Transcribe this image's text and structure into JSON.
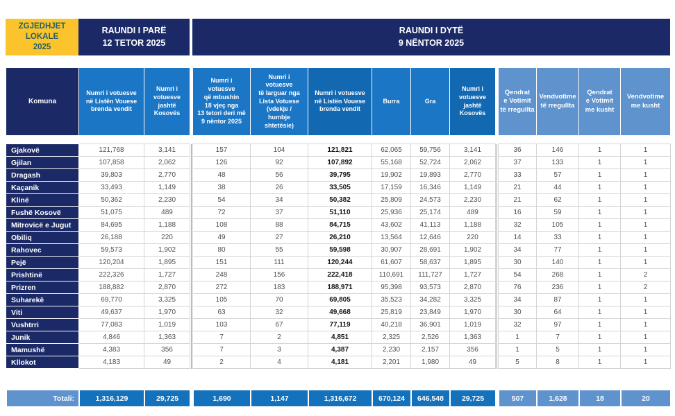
{
  "banner": {
    "logo": "ZGJEDHJET\nLOKALE\n2025",
    "round1": "RAUNDI I PARË\n12 TETOR 2025",
    "round2": "RAUNDI I DYTË\n9 NËNTOR 2025"
  },
  "table": {
    "columns": [
      {
        "key": "komuna",
        "label": "Komuna"
      },
      {
        "key": "r1_brenda",
        "label": "Numri i votuesve\nnë Listën Vouese\nbrenda vendit"
      },
      {
        "key": "r1_jashte",
        "label": "Numri i\nvotuesve\njashtë\nKosovës"
      },
      {
        "key": "r2_18vjec",
        "label": "Numri i\nvotuesve\nqë mbushin\n18 vjeç nga\n13 tetori deri më\n9 nëntor 2025"
      },
      {
        "key": "r2_larguar",
        "label": "Numri i\nvotuesve\ntë larguar nga\nLista Votuese\n(vdekje /\nhumbje\nshtetësie)"
      },
      {
        "key": "r2_brenda",
        "label": "Numri i votuesve\nnë Listën Vouese\nbrenda vendit"
      },
      {
        "key": "burra",
        "label": "Burra"
      },
      {
        "key": "gra",
        "label": "Gra"
      },
      {
        "key": "r2_jashte",
        "label": "Numri i\nvotuesve\njashtë\nKosovës"
      },
      {
        "key": "qv_rregullta",
        "label": "Qendrat\ne Votimit\ntë rregullta"
      },
      {
        "key": "vv_rregullta",
        "label": "Vendvotime\ntë rregullta"
      },
      {
        "key": "qv_kusht",
        "label": "Qendrat\ne Votimit\nme kusht"
      },
      {
        "key": "vv_kusht",
        "label": "Vendvotime\nme kusht"
      }
    ],
    "rows": [
      {
        "komuna": "Gjakovë",
        "values": [
          "121,768",
          "3,141",
          "157",
          "104",
          "121,821",
          "62,065",
          "59,756",
          "3,141",
          "36",
          "146",
          "1",
          "1"
        ]
      },
      {
        "komuna": "Gjilan",
        "values": [
          "107,858",
          "2,062",
          "126",
          "92",
          "107,892",
          "55,168",
          "52,724",
          "2,062",
          "37",
          "133",
          "1",
          "1"
        ]
      },
      {
        "komuna": "Dragash",
        "values": [
          "39,803",
          "2,770",
          "48",
          "56",
          "39,795",
          "19,902",
          "19,893",
          "2,770",
          "33",
          "57",
          "1",
          "1"
        ]
      },
      {
        "komuna": "Kaçanik",
        "values": [
          "33,493",
          "1,149",
          "38",
          "26",
          "33,505",
          "17,159",
          "16,346",
          "1,149",
          "21",
          "44",
          "1",
          "1"
        ]
      },
      {
        "komuna": "Klinë",
        "values": [
          "50,362",
          "2,230",
          "54",
          "34",
          "50,382",
          "25,809",
          "24,573",
          "2,230",
          "21",
          "62",
          "1",
          "1"
        ]
      },
      {
        "komuna": "Fushë Kosovë",
        "values": [
          "51,075",
          "489",
          "72",
          "37",
          "51,110",
          "25,936",
          "25,174",
          "489",
          "16",
          "59",
          "1",
          "1"
        ]
      },
      {
        "komuna": "Mitrovicë e Jugut",
        "values": [
          "84,695",
          "1,188",
          "108",
          "88",
          "84,715",
          "43,602",
          "41,113",
          "1,188",
          "32",
          "105",
          "1",
          "1"
        ]
      },
      {
        "komuna": "Obiliq",
        "values": [
          "26,188",
          "220",
          "49",
          "27",
          "26,210",
          "13,564",
          "12,646",
          "220",
          "14",
          "33",
          "1",
          "1"
        ]
      },
      {
        "komuna": "Rahovec",
        "values": [
          "59,573",
          "1,902",
          "80",
          "55",
          "59,598",
          "30,907",
          "28,691",
          "1,902",
          "34",
          "77",
          "1",
          "1"
        ]
      },
      {
        "komuna": "Pejë",
        "values": [
          "120,204",
          "1,895",
          "151",
          "111",
          "120,244",
          "61,607",
          "58,637",
          "1,895",
          "30",
          "140",
          "1",
          "1"
        ]
      },
      {
        "komuna": "Prishtinë",
        "values": [
          "222,326",
          "1,727",
          "248",
          "156",
          "222,418",
          "110,691",
          "111,727",
          "1,727",
          "54",
          "268",
          "1",
          "2"
        ]
      },
      {
        "komuna": "Prizren",
        "values": [
          "188,882",
          "2,870",
          "272",
          "183",
          "188,971",
          "95,398",
          "93,573",
          "2,870",
          "76",
          "236",
          "1",
          "2"
        ]
      },
      {
        "komuna": "Suharekë",
        "values": [
          "69,770",
          "3,325",
          "105",
          "70",
          "69,805",
          "35,523",
          "34,282",
          "3,325",
          "34",
          "87",
          "1",
          "1"
        ]
      },
      {
        "komuna": "Viti",
        "values": [
          "49,637",
          "1,970",
          "63",
          "32",
          "49,668",
          "25,819",
          "23,849",
          "1,970",
          "30",
          "64",
          "1",
          "1"
        ]
      },
      {
        "komuna": "Vushtrri",
        "values": [
          "77,083",
          "1,019",
          "103",
          "67",
          "77,119",
          "40,218",
          "36,901",
          "1,019",
          "32",
          "97",
          "1",
          "1"
        ]
      },
      {
        "komuna": "Junik",
        "values": [
          "4,846",
          "1,363",
          "7",
          "2",
          "4,851",
          "2,325",
          "2,526",
          "1,363",
          "1",
          "7",
          "1",
          "1"
        ]
      },
      {
        "komuna": "Mamushë",
        "values": [
          "4,383",
          "356",
          "7",
          "3",
          "4,387",
          "2,230",
          "2,157",
          "356",
          "1",
          "5",
          "1",
          "1"
        ]
      },
      {
        "komuna": "Kllokot",
        "values": [
          "4,183",
          "49",
          "2",
          "4",
          "4,181",
          "2,201",
          "1,980",
          "49",
          "5",
          "8",
          "1",
          "1"
        ]
      }
    ],
    "totals": {
      "label": "Totali:",
      "values": [
        "1,316,129",
        "29,725",
        "1,690",
        "1,147",
        "1,316,672",
        "670,124",
        "646,548",
        "29,725",
        "507",
        "1,628",
        "18",
        "20"
      ]
    }
  },
  "colors": {
    "navy": "#1B2A67",
    "header_blue": "#1C76C6",
    "header_blue_dark": "#1269B2",
    "header_blue_light": "#5E93CD",
    "totals_blue": "#1471BC",
    "accent_yellow": "#FBC42D",
    "logo_text": "#235F66"
  }
}
